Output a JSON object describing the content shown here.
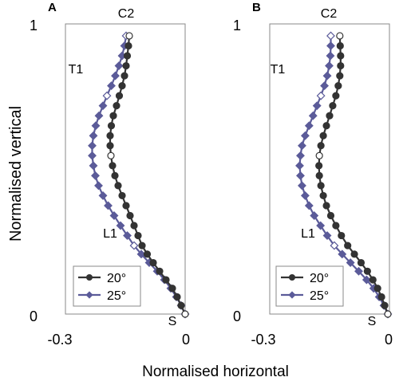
{
  "figure": {
    "ylabel": "Normalised vertical",
    "xlabel": "Normalised horizontal"
  },
  "chart_data": [
    {
      "panel": "A",
      "type": "line",
      "xlim": [
        -0.3,
        0
      ],
      "ylim": [
        0,
        1
      ],
      "x_tick_labels": [
        "-0.3",
        "0"
      ],
      "y_tick_labels": [
        "0",
        "1"
      ],
      "grid": false,
      "legend_position": "bottom-left",
      "annotations": [
        "C2",
        "T1",
        "L1",
        "S"
      ],
      "series": [
        {
          "name": "20°",
          "color": "#333333",
          "marker": "circle",
          "x": [
            0,
            -0.01,
            -0.02,
            -0.032,
            -0.048,
            -0.064,
            -0.08,
            -0.095,
            -0.108,
            -0.118,
            -0.128,
            -0.138,
            -0.148,
            -0.158,
            -0.168,
            -0.176,
            -0.182,
            -0.186,
            -0.188,
            -0.188,
            -0.185,
            -0.18,
            -0.172,
            -0.165,
            -0.158,
            -0.152,
            -0.148,
            -0.145,
            -0.142,
            -0.14
          ],
          "y": [
            0,
            0.03,
            0.06,
            0.09,
            0.12,
            0.15,
            0.18,
            0.21,
            0.24,
            0.275,
            0.31,
            0.345,
            0.38,
            0.415,
            0.45,
            0.485,
            0.52,
            0.555,
            0.59,
            0.625,
            0.66,
            0.695,
            0.73,
            0.765,
            0.8,
            0.835,
            0.87,
            0.905,
            0.94,
            0.975
          ]
        },
        {
          "name": "25°",
          "color": "#5B5B99",
          "marker": "diamond",
          "x": [
            0,
            -0.01,
            -0.022,
            -0.036,
            -0.052,
            -0.07,
            -0.09,
            -0.11,
            -0.128,
            -0.145,
            -0.162,
            -0.178,
            -0.193,
            -0.206,
            -0.217,
            -0.225,
            -0.23,
            -0.233,
            -0.233,
            -0.23,
            -0.224,
            -0.216,
            -0.206,
            -0.196,
            -0.185,
            -0.175,
            -0.166,
            -0.158,
            -0.152,
            -0.148
          ],
          "y": [
            0,
            0.03,
            0.06,
            0.09,
            0.12,
            0.15,
            0.18,
            0.21,
            0.24,
            0.275,
            0.31,
            0.345,
            0.38,
            0.415,
            0.45,
            0.485,
            0.52,
            0.555,
            0.59,
            0.625,
            0.66,
            0.695,
            0.73,
            0.765,
            0.8,
            0.835,
            0.87,
            0.905,
            0.94,
            0.975
          ]
        }
      ]
    },
    {
      "panel": "B",
      "type": "line",
      "xlim": [
        -0.3,
        0
      ],
      "ylim": [
        0,
        1
      ],
      "x_tick_labels": [
        "-0.3",
        "0"
      ],
      "y_tick_labels": [
        "0",
        "1"
      ],
      "grid": false,
      "legend_position": "bottom-left",
      "annotations": [
        "C2",
        "T1",
        "L1",
        "S"
      ],
      "series": [
        {
          "name": "20°",
          "color": "#333333",
          "marker": "circle",
          "x": [
            0,
            -0.008,
            -0.016,
            -0.026,
            -0.038,
            -0.052,
            -0.068,
            -0.085,
            -0.102,
            -0.118,
            -0.132,
            -0.145,
            -0.156,
            -0.164,
            -0.17,
            -0.174,
            -0.175,
            -0.174,
            -0.17,
            -0.164,
            -0.156,
            -0.148,
            -0.14,
            -0.132,
            -0.126,
            -0.122,
            -0.12,
            -0.12,
            -0.121,
            -0.122
          ],
          "y": [
            0,
            0.03,
            0.06,
            0.09,
            0.12,
            0.15,
            0.18,
            0.21,
            0.24,
            0.275,
            0.31,
            0.345,
            0.38,
            0.415,
            0.45,
            0.485,
            0.52,
            0.555,
            0.59,
            0.625,
            0.66,
            0.695,
            0.73,
            0.765,
            0.8,
            0.835,
            0.87,
            0.905,
            0.94,
            0.975
          ]
        },
        {
          "name": "25°",
          "color": "#5B5B99",
          "marker": "diamond",
          "x": [
            0,
            -0.01,
            -0.022,
            -0.036,
            -0.054,
            -0.074,
            -0.095,
            -0.116,
            -0.136,
            -0.154,
            -0.171,
            -0.187,
            -0.2,
            -0.21,
            -0.218,
            -0.222,
            -0.224,
            -0.222,
            -0.218,
            -0.21,
            -0.2,
            -0.19,
            -0.18,
            -0.17,
            -0.161,
            -0.154,
            -0.149,
            -0.146,
            -0.145,
            -0.145
          ],
          "y": [
            0,
            0.03,
            0.06,
            0.09,
            0.12,
            0.15,
            0.18,
            0.21,
            0.24,
            0.275,
            0.31,
            0.345,
            0.38,
            0.415,
            0.45,
            0.485,
            0.52,
            0.555,
            0.59,
            0.625,
            0.66,
            0.695,
            0.73,
            0.765,
            0.8,
            0.835,
            0.87,
            0.905,
            0.94,
            0.975
          ]
        }
      ]
    }
  ]
}
